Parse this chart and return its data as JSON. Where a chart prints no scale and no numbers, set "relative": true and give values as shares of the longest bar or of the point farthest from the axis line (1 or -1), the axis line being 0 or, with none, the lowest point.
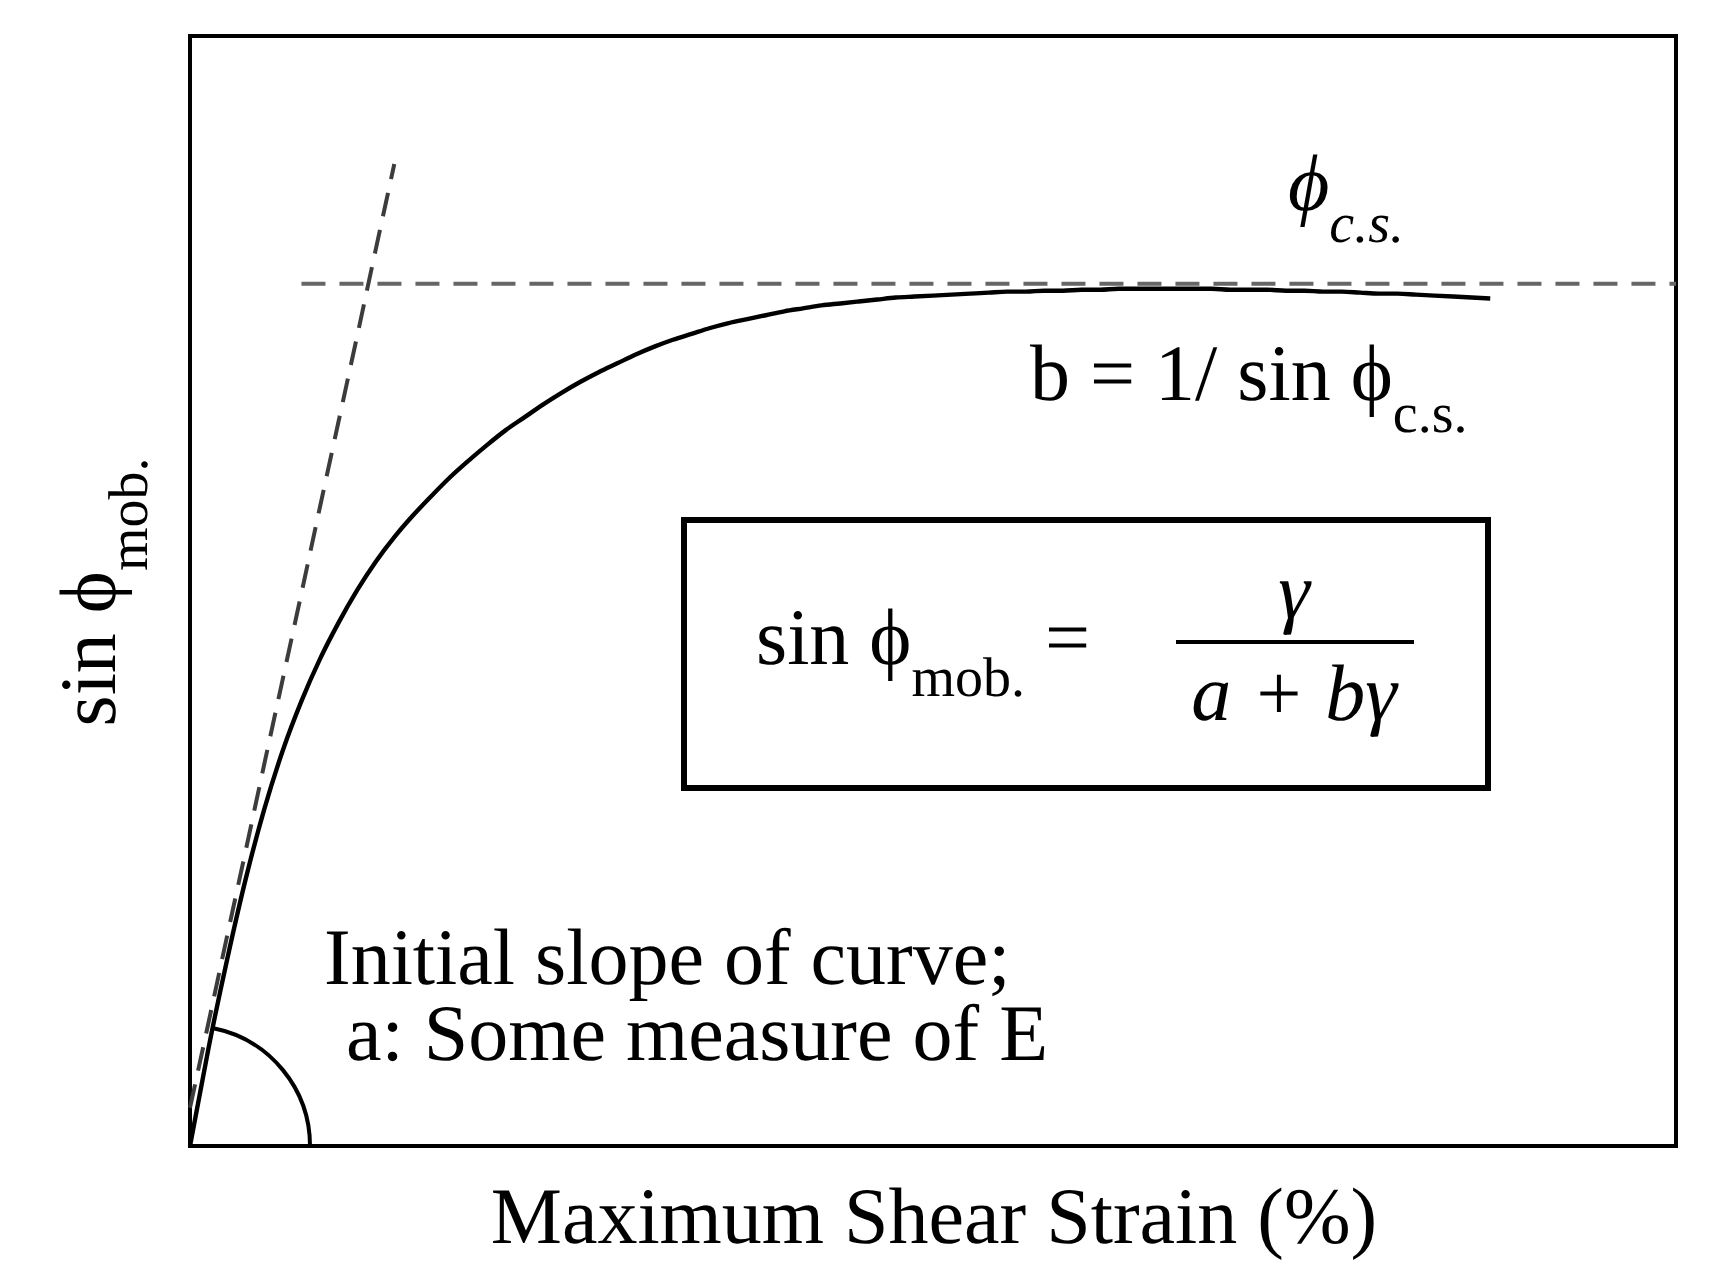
{
  "chart_data": {
    "type": "line",
    "relative": true,
    "xlabel": "Maximum Shear Strain (%)",
    "ylabel": "sin ϕ$_{mob.}$",
    "line_style": "solid",
    "categories": [
      null,
      null,
      null,
      null,
      null,
      null,
      null,
      null,
      null,
      null,
      null,
      null,
      null,
      null,
      null,
      null,
      null,
      null,
      null,
      null,
      null,
      null,
      null,
      null,
      null,
      null,
      null,
      null,
      null,
      null,
      null,
      null,
      null,
      null,
      null,
      null,
      null,
      null,
      null,
      null,
      null,
      null,
      null,
      null,
      null,
      null,
      null,
      null,
      null,
      null,
      null,
      null,
      null,
      null,
      null,
      null,
      null,
      null,
      null,
      null,
      null,
      null,
      null,
      null,
      null,
      null,
      null,
      null,
      null,
      null,
      null,
      null,
      null,
      null,
      null,
      null,
      null,
      null,
      null,
      null,
      null
    ],
    "series": [
      {
        "color": "#000000",
        "values": [
          0,
          0.1,
          0.19,
          0.272,
          0.343,
          0.403,
          0.453,
          0.496,
          0.533,
          0.566,
          0.595,
          0.62,
          0.642,
          0.662,
          0.681,
          0.698,
          0.714,
          0.729,
          0.742,
          0.755,
          0.767,
          0.778,
          0.788,
          0.797,
          0.806,
          0.814,
          0.821,
          0.827,
          0.833,
          0.838,
          0.842,
          0.846,
          0.85,
          0.853,
          0.856,
          0.858,
          0.86,
          0.862,
          0.864,
          0.865,
          0.866,
          0.867,
          0.868,
          0.869,
          0.87,
          0.87,
          0.871,
          0.871,
          0.872,
          0.872,
          0.873,
          0.873,
          0.873,
          0.873,
          0.873,
          0.873,
          0.872,
          0.872,
          0.872,
          0.871,
          0.871,
          0.87,
          0.87,
          0.869,
          0.868,
          0.868,
          0.867,
          0.866,
          0.865,
          0.864,
          0.863,
          null,
          null,
          null,
          null,
          null,
          null,
          null,
          null,
          null,
          null
        ]
      },
      {
        "color": "#3c3c3c",
        "line_style": "dashed",
        "values": [
          0.039,
          0.126,
          0.214,
          0.301,
          0.389,
          0.476,
          0.563,
          0.651,
          0.738,
          0.825,
          0.913,
          1.0,
          null,
          null,
          null,
          null,
          null,
          null,
          null,
          null,
          null,
          null,
          null,
          null,
          null,
          null,
          null,
          null,
          null,
          null,
          null,
          null,
          null,
          null,
          null,
          null,
          null,
          null,
          null,
          null,
          null,
          null,
          null,
          null,
          null,
          null,
          null,
          null,
          null,
          null,
          null,
          null,
          null,
          null,
          null,
          null,
          null,
          null,
          null,
          null,
          null,
          null,
          null,
          null,
          null,
          null,
          null,
          null,
          null,
          null,
          null,
          null,
          null,
          null,
          null,
          null,
          null,
          null,
          null,
          null,
          null
        ]
      },
      {
        "name": "ϕ$_{c.s.}$",
        "color": "#666666",
        "line_style": "dashed",
        "values": [
          null,
          null,
          null,
          null,
          null,
          null,
          0.878,
          0.878,
          0.878,
          0.878,
          0.878,
          0.878,
          0.878,
          0.878,
          0.878,
          0.878,
          0.878,
          0.878,
          0.878,
          0.878,
          0.878,
          0.878,
          0.878,
          0.878,
          0.878,
          0.878,
          0.878,
          0.878,
          0.878,
          0.878,
          0.878,
          0.878,
          0.878,
          0.878,
          0.878,
          0.878,
          0.878,
          0.878,
          0.878,
          0.878,
          0.878,
          0.878,
          0.878,
          0.878,
          0.878,
          0.878,
          0.878,
          0.878,
          0.878,
          0.878,
          0.878,
          0.878,
          0.878,
          0.878,
          0.878,
          0.878,
          0.878,
          0.878,
          0.878,
          0.878,
          0.878,
          0.878,
          0.878,
          0.878,
          0.878,
          0.878,
          0.878,
          0.878,
          0.878,
          0.878,
          0.878,
          0.878,
          0.878,
          0.878,
          0.878,
          0.878,
          0.878,
          0.878,
          0.878,
          0.878,
          0.878
        ]
      }
    ],
    "annotations": [
      "b = 1/ sin ϕ$_{c.s.}$",
      "sin ϕ$_{mob.}$ =",
      "γ",
      "a + bγ",
      "Initial slope of curve;",
      "a: Some measure of E"
    ]
  }
}
